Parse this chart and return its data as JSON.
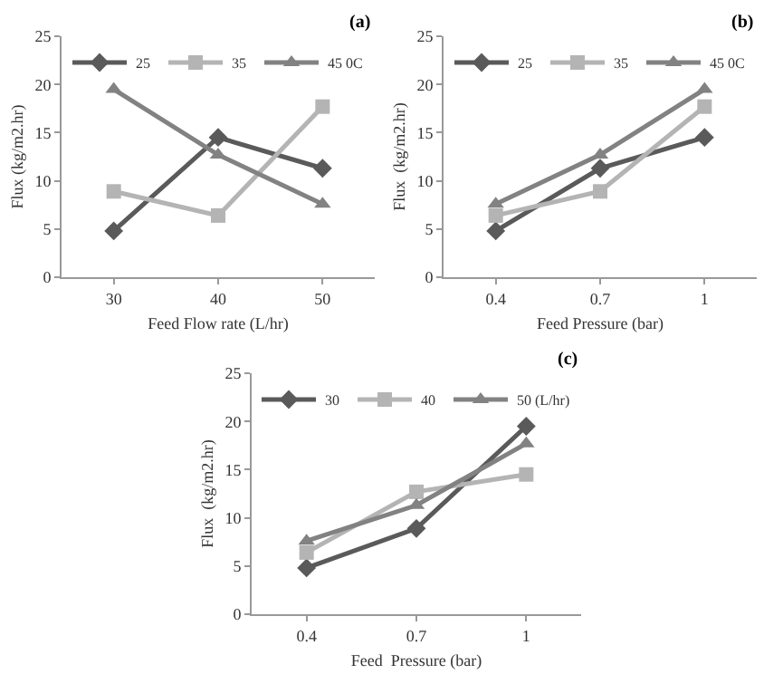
{
  "chart_data": [
    {
      "type": "line",
      "categories": [
        "30",
        "40",
        "50"
      ],
      "xlabel": "Feed Flow rate (L/hr)",
      "ylabel": "Flux (kg/m2.hr)",
      "ylim": [
        0,
        25
      ],
      "yticks": [
        0,
        5,
        10,
        15,
        20,
        25
      ],
      "grid": false,
      "legend": "top",
      "line_style": "solid",
      "annotations": [
        "(a)"
      ],
      "series": [
        {
          "name": "25",
          "color": "#5a5a5a",
          "marker": "diamond",
          "values": [
            4.8,
            14.5,
            11.3
          ]
        },
        {
          "name": "35",
          "color": "#b4b4b4",
          "marker": "square",
          "values": [
            8.9,
            6.4,
            17.7
          ]
        },
        {
          "name": "45 0C",
          "color": "#828282",
          "marker": "triangle",
          "values": [
            19.5,
            12.7,
            7.6
          ]
        }
      ]
    },
    {
      "type": "line",
      "categories": [
        "0.4",
        "0.7",
        "1"
      ],
      "xlabel": "Feed Pressure (bar)",
      "ylabel": "Flux  (kg/m2.hr)",
      "ylim": [
        0,
        25
      ],
      "yticks": [
        0,
        5,
        10,
        15,
        20,
        25
      ],
      "grid": false,
      "legend": "top",
      "line_style": "solid",
      "annotations": [
        "(b)"
      ],
      "series": [
        {
          "name": "25",
          "color": "#5a5a5a",
          "marker": "diamond",
          "values": [
            4.8,
            11.3,
            14.5
          ]
        },
        {
          "name": "35",
          "color": "#b4b4b4",
          "marker": "square",
          "values": [
            6.4,
            8.9,
            17.7
          ]
        },
        {
          "name": "45 0C",
          "color": "#828282",
          "marker": "triangle",
          "values": [
            7.6,
            12.7,
            19.5
          ]
        }
      ]
    },
    {
      "type": "line",
      "categories": [
        "0.4",
        "0.7",
        "1"
      ],
      "xlabel": "Feed  Pressure (bar)",
      "ylabel": "Flux  (kg/m2.hr)",
      "ylim": [
        0,
        25
      ],
      "yticks": [
        0,
        5,
        10,
        15,
        20,
        25
      ],
      "grid": false,
      "legend": "top",
      "line_style": "solid",
      "annotations": [
        "(c)"
      ],
      "series": [
        {
          "name": "30",
          "color": "#5a5a5a",
          "marker": "diamond",
          "values": [
            4.8,
            8.9,
            19.5
          ]
        },
        {
          "name": "40",
          "color": "#b4b4b4",
          "marker": "square",
          "values": [
            6.4,
            12.7,
            14.5
          ]
        },
        {
          "name": "50 (L/hr)",
          "color": "#828282",
          "marker": "triangle",
          "values": [
            7.6,
            11.3,
            17.7
          ]
        }
      ]
    }
  ]
}
